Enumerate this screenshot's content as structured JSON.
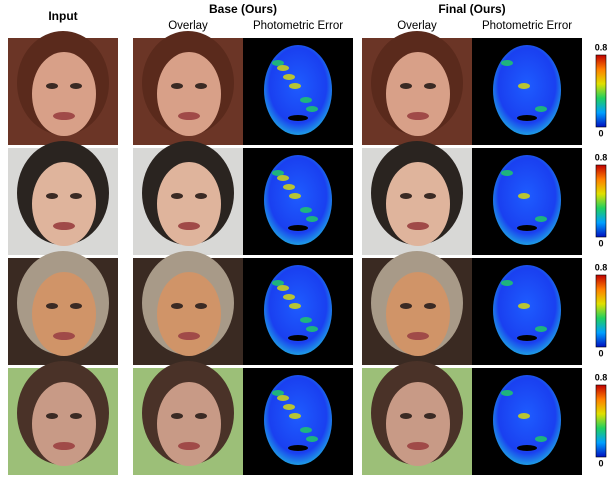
{
  "headers": {
    "input": "Input",
    "base": {
      "title": "Base (Ours)",
      "subtitles": [
        "Overlay",
        "Photometric Error"
      ]
    },
    "final": {
      "title": "Final (Ours)",
      "subtitles": [
        "Overlay",
        "Photometric Error"
      ]
    }
  },
  "colorbars": [
    {
      "max": 0.8,
      "min": 0
    },
    {
      "max": 0.8,
      "min": 0
    },
    {
      "max": 0.8,
      "min": 0
    },
    {
      "max": 0.8,
      "min": 0
    }
  ]
}
